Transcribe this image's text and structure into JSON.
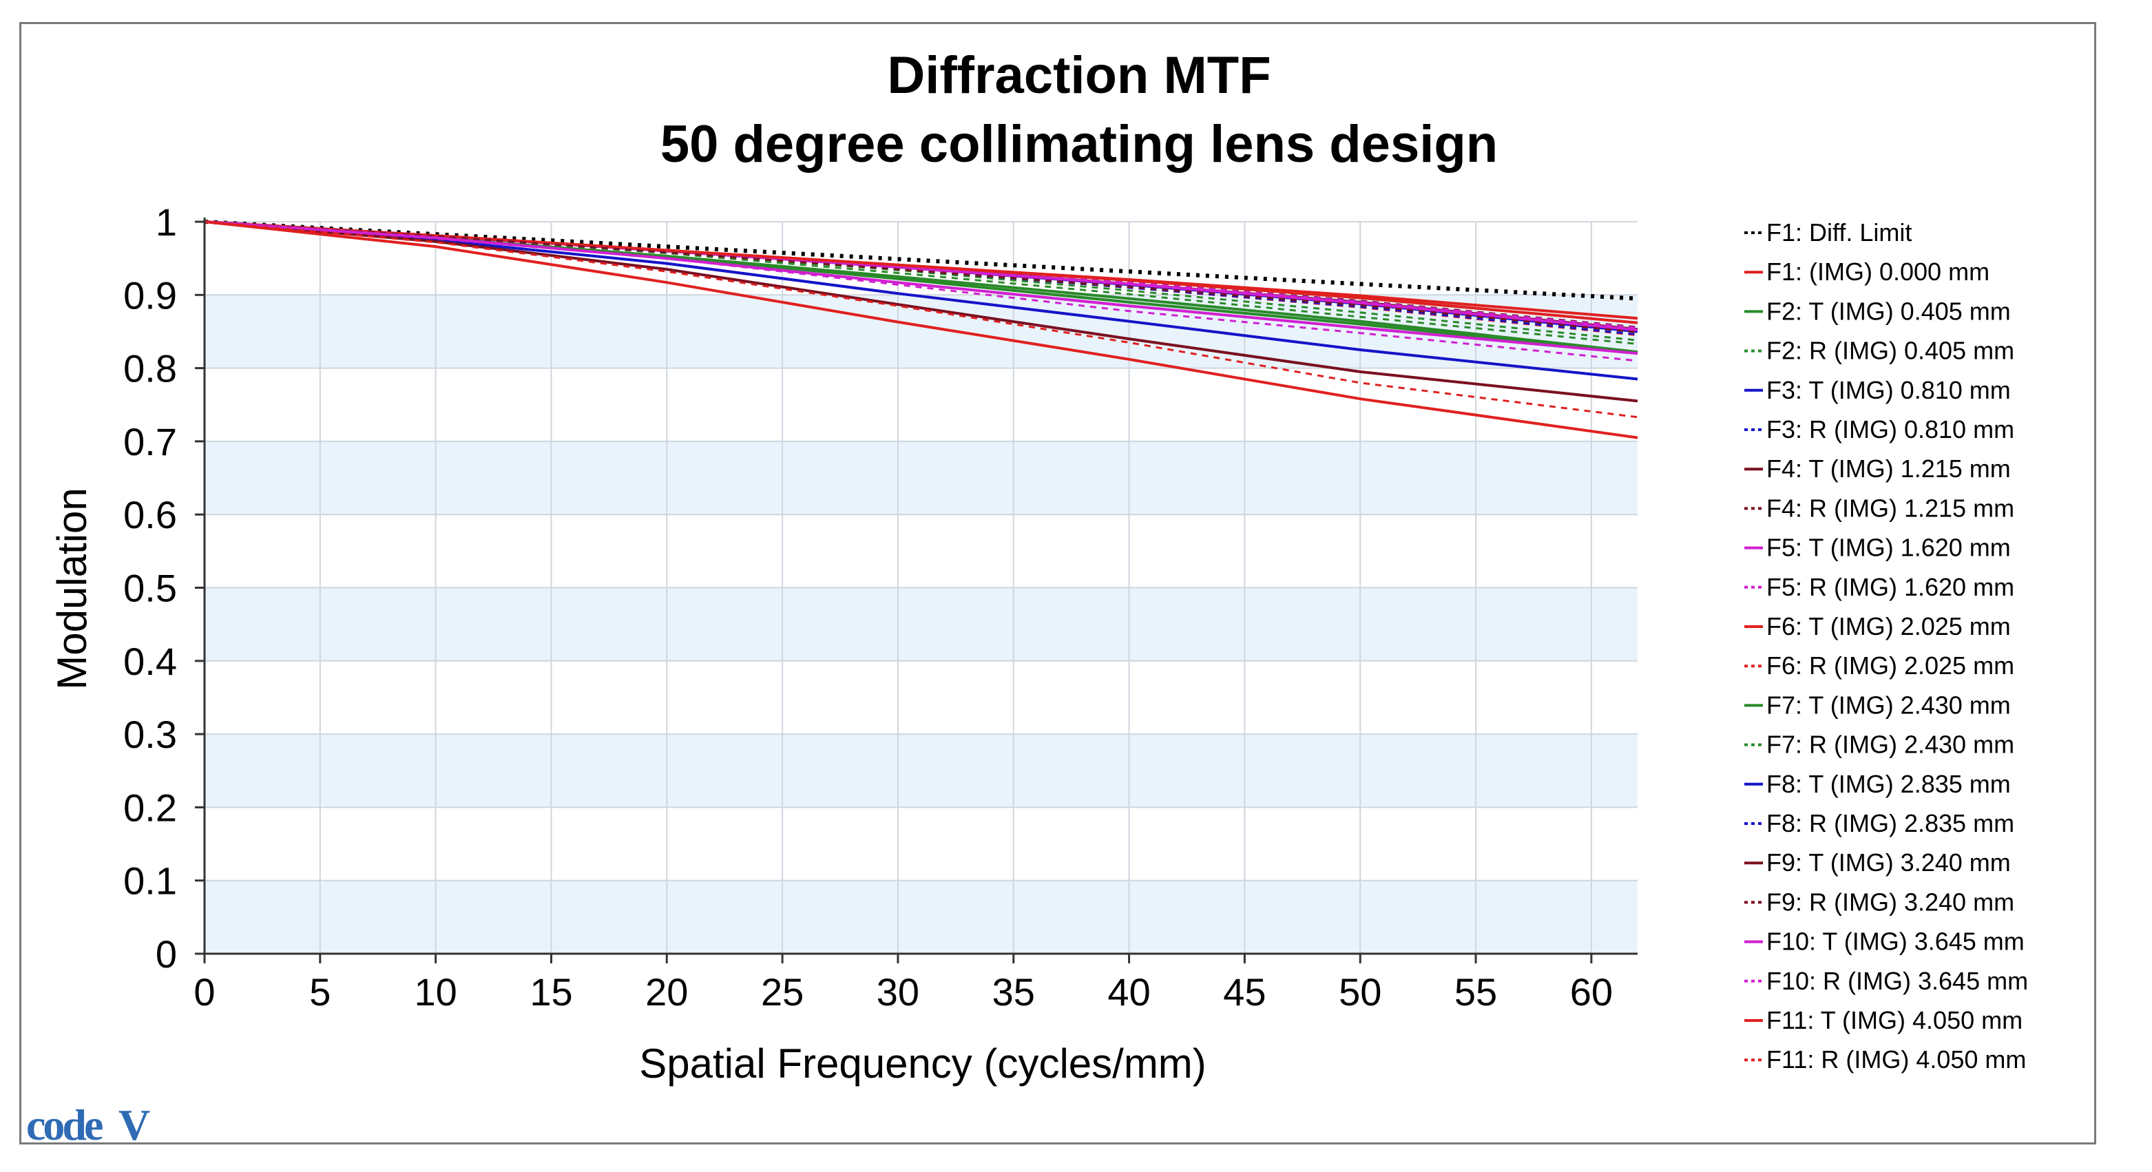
{
  "logo": {
    "text": "code",
    "mark": "V",
    "color": "#2f6bb5"
  },
  "chart_data": {
    "type": "line",
    "title": [
      "Diffraction MTF",
      "50 degree collimating lens design"
    ],
    "xlabel": "Spatial Frequency (cycles/mm)",
    "ylabel": "Modulation",
    "xlim": [
      0,
      62
    ],
    "ylim": [
      0,
      1
    ],
    "xticks": [
      0,
      5,
      10,
      15,
      20,
      25,
      30,
      35,
      40,
      45,
      50,
      55,
      60
    ],
    "yticks": [
      0,
      0.1,
      0.2,
      0.3,
      0.4,
      0.5,
      0.6,
      0.7,
      0.8,
      0.9,
      1
    ],
    "ytick_labels": [
      "0",
      "0.1",
      "0.2",
      "0.3",
      "0.4",
      "0.5",
      "0.6",
      "0.7",
      "0.8",
      "0.9",
      "1"
    ],
    "grid": true,
    "band_color": "#e9f3fb",
    "legend_position": "right",
    "x": [
      0,
      10,
      20,
      30,
      40,
      50,
      62
    ],
    "series": [
      {
        "name": "F1: Diff. Limit",
        "color": "#000000",
        "dash": "dot",
        "values": [
          1.0,
          0.983,
          0.966,
          0.949,
          0.932,
          0.915,
          0.895
        ]
      },
      {
        "name": "F1: (IMG) 0.000 mm",
        "color": "#e02020",
        "dash": "solid",
        "values": [
          1.0,
          0.981,
          0.961,
          0.941,
          0.921,
          0.899,
          0.868
        ]
      },
      {
        "name": "F2: T (IMG) 0.405 mm",
        "color": "#2a8a2a",
        "dash": "solid",
        "values": [
          1.0,
          0.978,
          0.952,
          0.922,
          0.89,
          0.86,
          0.82
        ]
      },
      {
        "name": "F2: R (IMG) 0.405 mm",
        "color": "#2a8a2a",
        "dash": "dot",
        "values": [
          1.0,
          0.98,
          0.957,
          0.93,
          0.901,
          0.87,
          0.833
        ]
      },
      {
        "name": "F3: T (IMG) 0.810 mm",
        "color": "#1414c8",
        "dash": "solid",
        "values": [
          1.0,
          0.981,
          0.96,
          0.938,
          0.914,
          0.888,
          0.85
        ]
      },
      {
        "name": "F3: R (IMG) 0.810 mm",
        "color": "#1414c8",
        "dash": "dot",
        "values": [
          1.0,
          0.981,
          0.961,
          0.94,
          0.917,
          0.892,
          0.855
        ]
      },
      {
        "name": "F4: T (IMG) 1.215 mm",
        "color": "#7a1020",
        "dash": "solid",
        "values": [
          1.0,
          0.981,
          0.96,
          0.939,
          0.915,
          0.89,
          0.853
        ]
      },
      {
        "name": "F4: R (IMG) 1.215 mm",
        "color": "#7a1020",
        "dash": "dot",
        "values": [
          1.0,
          0.981,
          0.961,
          0.94,
          0.917,
          0.892,
          0.856
        ]
      },
      {
        "name": "F5: T (IMG) 1.620 mm",
        "color": "#d020d0",
        "dash": "solid",
        "values": [
          1.0,
          0.981,
          0.96,
          0.938,
          0.915,
          0.889,
          0.852
        ]
      },
      {
        "name": "F5: R (IMG) 1.620 mm",
        "color": "#d020d0",
        "dash": "dot",
        "values": [
          1.0,
          0.981,
          0.961,
          0.94,
          0.917,
          0.891,
          0.855
        ]
      },
      {
        "name": "F6: T (IMG) 2.025 mm",
        "color": "#e02020",
        "dash": "solid",
        "values": [
          1.0,
          0.981,
          0.961,
          0.941,
          0.92,
          0.896,
          0.862
        ]
      },
      {
        "name": "F6: R (IMG) 2.025 mm",
        "color": "#e02020",
        "dash": "dot",
        "values": [
          1.0,
          0.98,
          0.958,
          0.935,
          0.91,
          0.883,
          0.845
        ]
      },
      {
        "name": "F7: T (IMG) 2.430 mm",
        "color": "#2a8a2a",
        "dash": "solid",
        "values": [
          1.0,
          0.978,
          0.953,
          0.925,
          0.895,
          0.864,
          0.822
        ]
      },
      {
        "name": "F7: R (IMG) 2.430 mm",
        "color": "#2a8a2a",
        "dash": "dot",
        "values": [
          1.0,
          0.98,
          0.958,
          0.934,
          0.906,
          0.876,
          0.838
        ]
      },
      {
        "name": "F8: T (IMG) 2.835 mm",
        "color": "#1414c8",
        "dash": "solid",
        "values": [
          1.0,
          0.975,
          0.943,
          0.902,
          0.864,
          0.825,
          0.785
        ]
      },
      {
        "name": "F8: R (IMG) 2.835 mm",
        "color": "#1414c8",
        "dash": "dot",
        "values": [
          1.0,
          0.98,
          0.958,
          0.935,
          0.91,
          0.884,
          0.846
        ]
      },
      {
        "name": "F9: T (IMG) 3.240 mm",
        "color": "#7a1020",
        "dash": "solid",
        "values": [
          1.0,
          0.973,
          0.935,
          0.887,
          0.84,
          0.795,
          0.755
        ]
      },
      {
        "name": "F9: R (IMG) 3.240 mm",
        "color": "#7a1020",
        "dash": "dot",
        "values": [
          1.0,
          0.98,
          0.958,
          0.935,
          0.911,
          0.886,
          0.849
        ]
      },
      {
        "name": "F10: T (IMG) 3.645 mm",
        "color": "#d020d0",
        "dash": "solid",
        "values": [
          1.0,
          0.978,
          0.95,
          0.917,
          0.885,
          0.855,
          0.82
        ]
      },
      {
        "name": "F10: R (IMG) 3.645 mm",
        "color": "#d020d0",
        "dash": "dot",
        "values": [
          1.0,
          0.977,
          0.95,
          0.914,
          0.878,
          0.848,
          0.81
        ]
      },
      {
        "name": "F11: T (IMG) 4.050 mm",
        "color": "#e02020",
        "dash": "solid",
        "values": [
          1.0,
          0.966,
          0.917,
          0.863,
          0.812,
          0.758,
          0.705
        ]
      },
      {
        "name": "F11: R (IMG) 4.050 mm",
        "color": "#e02020",
        "dash": "dot",
        "values": [
          1.0,
          0.972,
          0.932,
          0.885,
          0.835,
          0.78,
          0.733
        ]
      }
    ]
  }
}
